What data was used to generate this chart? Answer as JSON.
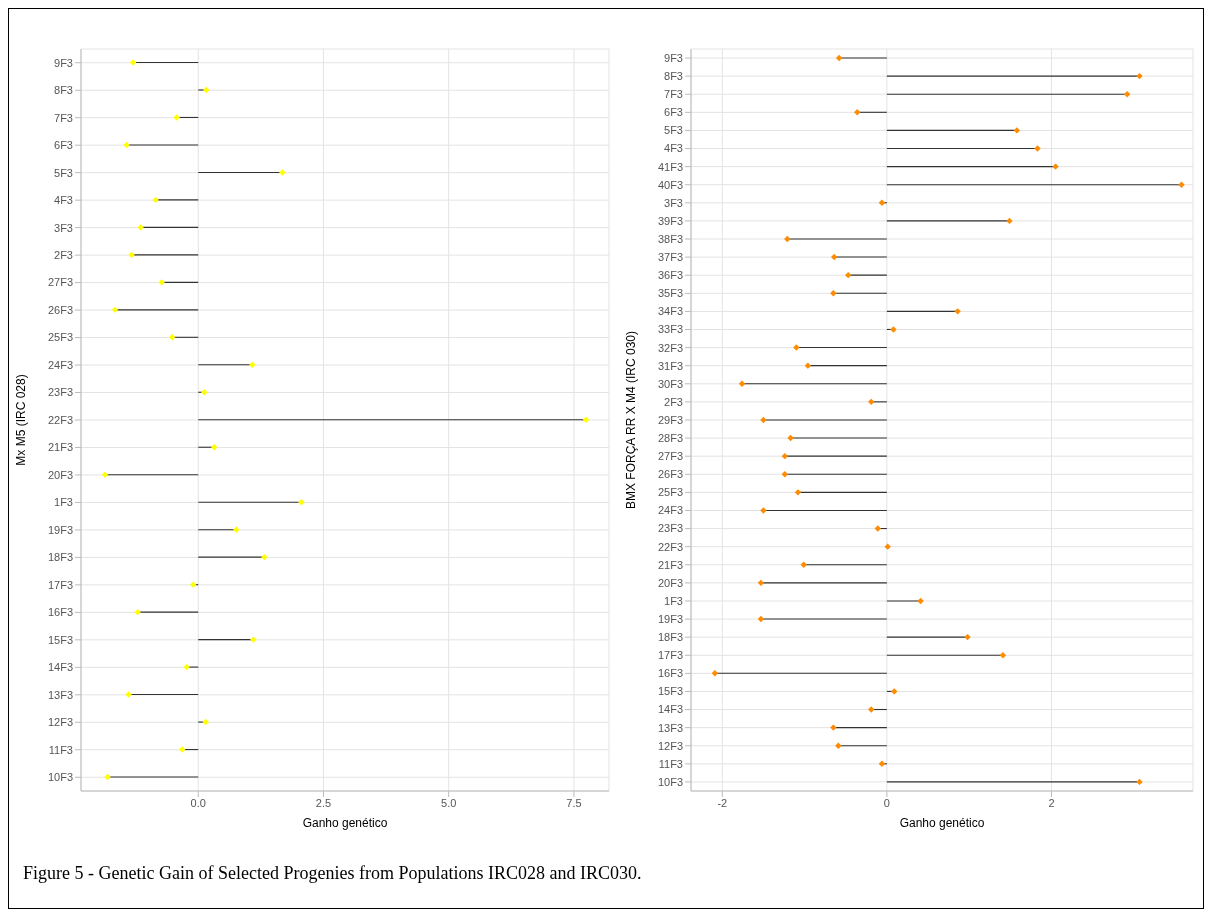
{
  "chart_data": [
    {
      "type": "lollipop",
      "orientation": "horizontal",
      "ylabel": "Mx M5 (IRC 028)",
      "xlabel": "Ganho genético",
      "marker": "diamond",
      "grid": true,
      "categories": [
        "9F3",
        "8F3",
        "7F3",
        "6F3",
        "5F3",
        "4F3",
        "3F3",
        "2F3",
        "27F3",
        "26F3",
        "25F3",
        "24F3",
        "23F3",
        "22F3",
        "21F3",
        "20F3",
        "1F3",
        "19F3",
        "18F3",
        "17F3",
        "16F3",
        "15F3",
        "14F3",
        "13F3",
        "12F3",
        "11F3",
        "10F3"
      ],
      "values": [
        -1.3,
        0.16,
        -0.43,
        -1.43,
        1.68,
        -0.85,
        -1.15,
        -1.33,
        -0.73,
        -1.66,
        -0.52,
        1.08,
        0.12,
        7.74,
        0.32,
        -1.86,
        2.06,
        0.76,
        1.32,
        -0.1,
        -1.21,
        1.1,
        -0.23,
        -1.39,
        0.15,
        -0.32,
        -1.81
      ],
      "color": "#ffff00",
      "xlim": [
        -2.34,
        8.2
      ],
      "xticks": [
        {
          "value": 0,
          "label": "0.0"
        },
        {
          "value": 2.5,
          "label": "2.5"
        },
        {
          "value": 5,
          "label": "5.0"
        },
        {
          "value": 7.5,
          "label": "7.5"
        }
      ],
      "annotations": [
        "Figure 5 - Genetic Gain of Selected Progenies from Populations IRC028 and IRC030."
      ]
    },
    {
      "type": "lollipop",
      "orientation": "horizontal",
      "ylabel": "BMX FORÇA RR X M4 (IRC 030)",
      "xlabel": "Ganho genético",
      "marker": "diamond",
      "grid": true,
      "categories": [
        "9F3",
        "8F3",
        "7F3",
        "6F3",
        "5F3",
        "4F3",
        "41F3",
        "40F3",
        "3F3",
        "39F3",
        "38F3",
        "37F3",
        "36F3",
        "35F3",
        "34F3",
        "33F3",
        "32F3",
        "31F3",
        "30F3",
        "2F3",
        "29F3",
        "28F3",
        "27F3",
        "26F3",
        "25F3",
        "24F3",
        "23F3",
        "22F3",
        "21F3",
        "20F3",
        "1F3",
        "19F3",
        "18F3",
        "17F3",
        "16F3",
        "15F3",
        "14F3",
        "13F3",
        "12F3",
        "11F3",
        "10F3"
      ],
      "values": [
        -0.58,
        3.07,
        2.92,
        -0.36,
        1.58,
        1.83,
        2.05,
        3.58,
        -0.06,
        1.49,
        -1.21,
        -0.64,
        -0.47,
        -0.65,
        0.86,
        0.08,
        -1.1,
        -0.96,
        -1.76,
        -0.19,
        -1.5,
        -1.17,
        -1.24,
        -1.24,
        -1.08,
        -1.5,
        -0.11,
        0.01,
        -1.01,
        -1.53,
        0.41,
        -1.53,
        0.98,
        1.41,
        -2.09,
        0.09,
        -0.19,
        -0.65,
        -0.59,
        -0.06,
        3.07
      ],
      "color": "#ff8c00",
      "xlim": [
        -2.38,
        3.72
      ],
      "xticks": [
        -2,
        0,
        2
      ]
    }
  ]
}
